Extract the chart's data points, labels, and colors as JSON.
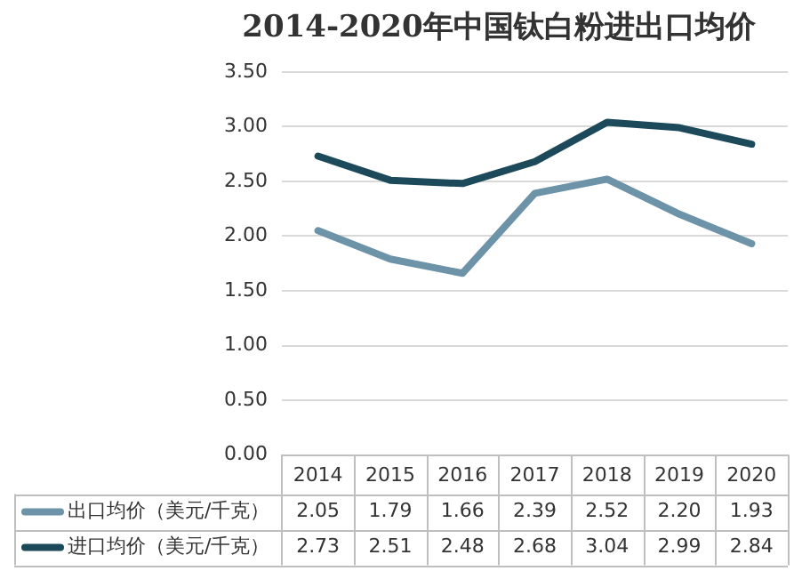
{
  "chart_data": {
    "type": "line",
    "title": "2014-2020年中国钛白粉进出口均价",
    "categories": [
      "2014",
      "2015",
      "2016",
      "2017",
      "2018",
      "2019",
      "2020"
    ],
    "series": [
      {
        "name": "出口均价（美元/千克）",
        "color": "#6d93a8",
        "values": [
          2.05,
          1.79,
          1.66,
          2.39,
          2.52,
          2.2,
          1.93
        ],
        "value_labels": [
          "2.05",
          "1.79",
          "1.66",
          "2.39",
          "2.52",
          "2.20",
          "1.93"
        ]
      },
      {
        "name": "进口均价（美元/千克）",
        "color": "#1c4a5a",
        "values": [
          2.73,
          2.51,
          2.48,
          2.68,
          3.04,
          2.99,
          2.84
        ],
        "value_labels": [
          "2.73",
          "2.51",
          "2.48",
          "2.68",
          "3.04",
          "2.99",
          "2.84"
        ]
      }
    ],
    "ylim": [
      0,
      3.5
    ],
    "yticks": [
      {
        "value": 0,
        "label": "0.00"
      },
      {
        "value": 0.5,
        "label": "0.50"
      },
      {
        "value": 1,
        "label": "1.00"
      },
      {
        "value": 1.5,
        "label": "1.50"
      },
      {
        "value": 2,
        "label": "2.00"
      },
      {
        "value": 2.5,
        "label": "2.50"
      },
      {
        "value": 3,
        "label": "3.00"
      },
      {
        "value": 3.5,
        "label": "3.50"
      }
    ],
    "grid": "y",
    "legend": "bottom",
    "marker": "none",
    "line_style": "solid"
  }
}
